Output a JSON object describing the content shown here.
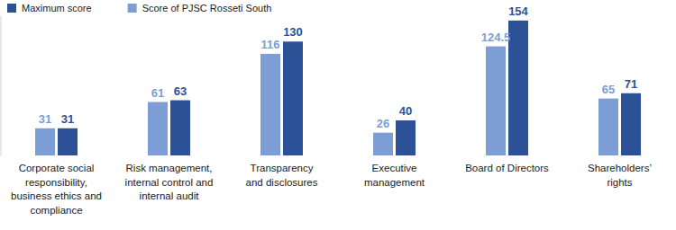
{
  "chart_data": {
    "type": "bar",
    "categories": [
      "Corporate social\nresponsibility,\nbusiness ethics and\ncompliance",
      "Risk management,\ninternal control and\ninternal audit",
      "Transparency\nand disclosures",
      "Executive\nmanagement",
      "Board of Directors",
      "Shareholders’\nrights"
    ],
    "series": [
      {
        "name": "Maximum score",
        "color": "#2d5197",
        "values": [
          31,
          63,
          130,
          40,
          154,
          71
        ]
      },
      {
        "name": "Score of PJSC Rosseti South",
        "color": "#7d9dd5",
        "values": [
          31,
          61,
          116,
          26,
          124.5,
          65
        ]
      }
    ],
    "ylim": [
      0,
      160
    ],
    "yticks": [],
    "grid": false,
    "legend": "top-left",
    "data_labels": true,
    "tick_labels": "x"
  }
}
